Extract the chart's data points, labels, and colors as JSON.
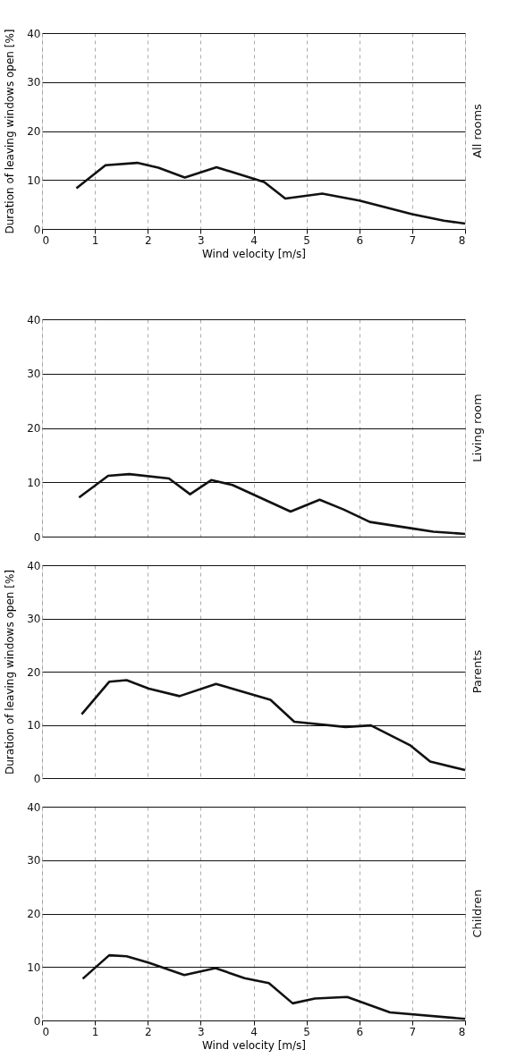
{
  "chart_data": [
    {
      "type": "line",
      "title": "All rooms",
      "xlabel": "Wind velocity [m/s]",
      "ylabel": "Duration of leaving windows open [%]",
      "x": [
        0.65,
        1.2,
        1.8,
        2.2,
        2.7,
        3.3,
        4.2,
        4.6,
        5.3,
        6.0,
        7.0,
        7.6,
        8.0
      ],
      "series": [
        {
          "color": "#111111",
          "values": [
            8.3,
            13.0,
            13.5,
            12.5,
            10.5,
            12.6,
            9.6,
            6.2,
            7.2,
            5.8,
            3.0,
            1.7,
            1.1
          ]
        }
      ],
      "xlim": [
        0,
        8
      ],
      "ylim": [
        0,
        40
      ],
      "xticks": [
        0,
        1,
        2,
        3,
        4,
        5,
        6,
        7,
        8
      ],
      "yticks": [
        0,
        10,
        20,
        30,
        40
      ],
      "grid": true,
      "marker": "none"
    },
    {
      "type": "line",
      "title": "Living room",
      "x": [
        0.7,
        1.25,
        1.65,
        2.4,
        2.8,
        3.2,
        3.6,
        4.7,
        5.25,
        5.7,
        6.2,
        7.0,
        7.4,
        8.0
      ],
      "series": [
        {
          "color": "#111111",
          "values": [
            7.2,
            11.2,
            11.5,
            10.7,
            7.8,
            10.4,
            9.5,
            4.6,
            6.8,
            5.0,
            2.7,
            1.5,
            0.9,
            0.5
          ]
        }
      ],
      "xlim": [
        0,
        8
      ],
      "ylim": [
        0,
        40
      ],
      "xticks": [
        0,
        1,
        2,
        3,
        4,
        5,
        6,
        7,
        8
      ],
      "yticks": [
        0,
        10,
        20,
        30,
        40
      ],
      "grid": true,
      "tick_labels": "y",
      "marker": "none"
    },
    {
      "type": "line",
      "title": "Parents",
      "ylabel": "Duration of leaving windows open [%]",
      "x": [
        0.75,
        1.27,
        1.6,
        2.02,
        2.6,
        3.29,
        4.32,
        4.77,
        5.74,
        6.22,
        6.97,
        7.34,
        8.0
      ],
      "series": [
        {
          "color": "#111111",
          "values": [
            12.0,
            18.1,
            18.4,
            16.8,
            15.4,
            17.7,
            14.7,
            10.6,
            9.6,
            9.9,
            6.1,
            3.1,
            1.5
          ]
        }
      ],
      "xlim": [
        0,
        8
      ],
      "ylim": [
        0,
        40
      ],
      "xticks": [
        0,
        1,
        2,
        3,
        4,
        5,
        6,
        7,
        8
      ],
      "yticks": [
        0,
        10,
        20,
        30,
        40
      ],
      "grid": true,
      "tick_labels": "y",
      "marker": "none"
    },
    {
      "type": "line",
      "title": "Children",
      "xlabel": "Wind velocity [m/s]",
      "x": [
        0.77,
        1.27,
        1.6,
        2.02,
        2.69,
        3.28,
        3.83,
        4.29,
        4.74,
        5.16,
        5.77,
        6.58,
        8.0
      ],
      "series": [
        {
          "color": "#111111",
          "values": [
            7.8,
            12.2,
            12.0,
            10.8,
            8.5,
            9.8,
            7.9,
            7.0,
            3.2,
            4.1,
            4.4,
            1.5,
            0.3
          ]
        }
      ],
      "xlim": [
        0,
        8
      ],
      "ylim": [
        0,
        40
      ],
      "xticks": [
        0,
        1,
        2,
        3,
        4,
        5,
        6,
        7,
        8
      ],
      "yticks": [
        0,
        10,
        20,
        30,
        40
      ],
      "grid": true,
      "marker": "none"
    }
  ]
}
